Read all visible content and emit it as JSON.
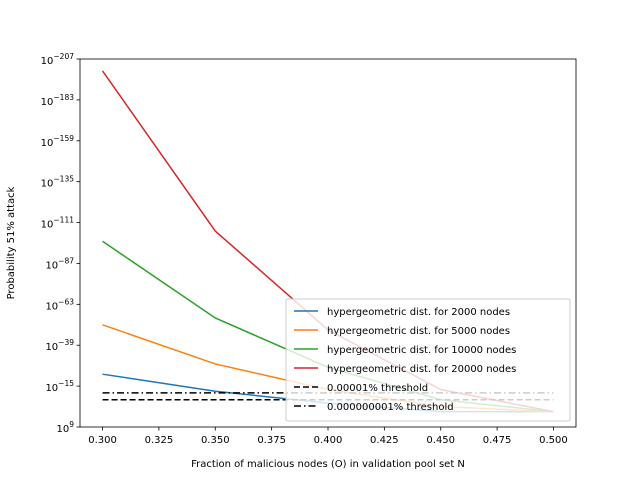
{
  "chart_data": {
    "type": "line",
    "xlabel": "Fraction of malicious nodes (O) in validation pool set N",
    "ylabel": "Probability 51% attack",
    "y_scale": "log",
    "xlim": [
      0.29,
      0.51
    ],
    "ylim_exponent": [
      -207,
      9
    ],
    "x_ticks": [
      "0.300",
      "0.325",
      "0.350",
      "0.375",
      "0.400",
      "0.425",
      "0.450",
      "0.475",
      "0.500"
    ],
    "x_tick_values": [
      0.3,
      0.325,
      0.35,
      0.375,
      0.4,
      0.425,
      0.45,
      0.475,
      0.5
    ],
    "y_tick_exponents": [
      9,
      -15,
      -39,
      -63,
      -87,
      -111,
      -135,
      -159,
      -183,
      -207
    ],
    "y_tick_base": "10",
    "legend_position": "lower right",
    "series": [
      {
        "name": "hypergeometric dist. for 2000 nodes",
        "color": "#1f77b4",
        "style": "solid",
        "x": [
          0.3,
          0.35,
          0.4,
          0.45,
          0.5
        ],
        "log10_y": [
          -22,
          -12,
          -5,
          0,
          0
        ]
      },
      {
        "name": "hypergeometric dist. for 5000 nodes",
        "color": "#ff7f0e",
        "style": "solid",
        "x": [
          0.3,
          0.35,
          0.4,
          0.45,
          0.5
        ],
        "log10_y": [
          -51,
          -28,
          -13,
          -3,
          0
        ]
      },
      {
        "name": "hypergeometric dist. for 10000 nodes",
        "color": "#2ca02c",
        "style": "solid",
        "x": [
          0.3,
          0.35,
          0.4,
          0.45,
          0.5
        ],
        "log10_y": [
          -100,
          -55,
          -26,
          -7,
          0
        ]
      },
      {
        "name": "hypergeometric dist. for 20000 nodes",
        "color": "#d62728",
        "style": "solid",
        "x": [
          0.3,
          0.35,
          0.4,
          0.45,
          0.5
        ],
        "log10_y": [
          -200,
          -106,
          -48,
          -13,
          0
        ]
      },
      {
        "name": "0.00001% threshold",
        "color": "#000000",
        "style": "dashed",
        "x": [
          0.3,
          0.5
        ],
        "log10_y": [
          -7,
          -7
        ]
      },
      {
        "name": "0.000000001% threshold",
        "color": "#000000",
        "style": "dashdot",
        "x": [
          0.3,
          0.5
        ],
        "log10_y": [
          -11,
          -11
        ]
      }
    ]
  }
}
